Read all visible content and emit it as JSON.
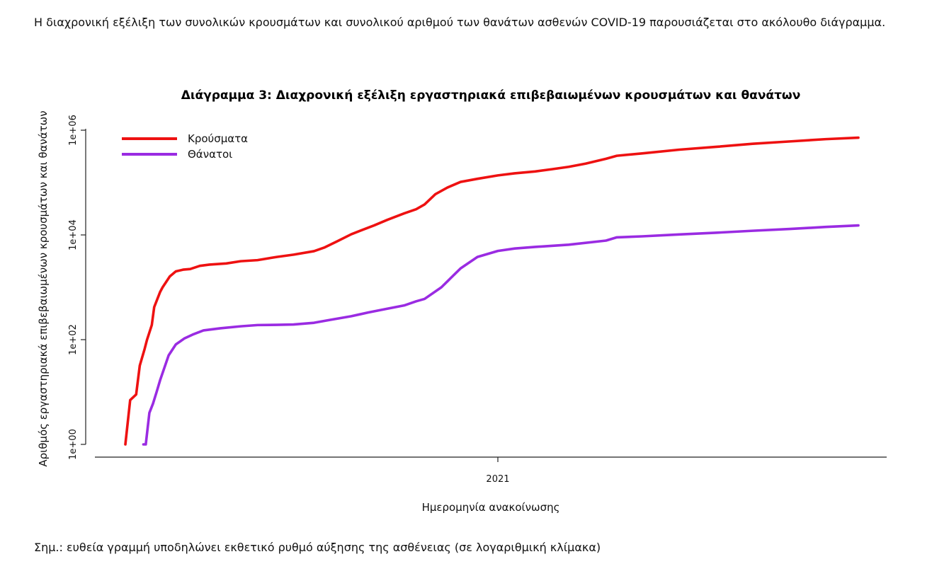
{
  "intro_text": "Η διαχρονική εξέλιξη των συνολικών κρουσμάτων και συνολικού αριθμού των θανάτων ασθενών COVID-19 παρουσιάζεται στο ακόλουθο διάγραμμα.",
  "note_text": "Σημ.: ευθεία γραμμή υποδηλώνει εκθετικό ρυθμό αύξησης της ασθένειας (σε λογαριθμική κλίμακα)",
  "chart_data": {
    "type": "line",
    "title": "Διάγραμμα 3: Διαχρονική εξέλιξη εργαστηριακά επιβεβαιωμένων κρουσμάτων και θανάτων",
    "xlabel": "Ημερομηνία ανακοίνωσης",
    "ylabel": "Αριθμός εργαστηριακά επιβεβαιωμένων κρουσμάτων και θανάτων",
    "y_scale": "log10",
    "ylim": [
      1,
      1000000
    ],
    "y_ticks": [
      "1e+00",
      "1e+02",
      "1e+04",
      "1e+06"
    ],
    "y_tick_values": [
      1,
      100,
      10000,
      1000000
    ],
    "xlim": [
      "2020-02-26",
      "2021-10-28"
    ],
    "x_ticks": [
      "2021"
    ],
    "x_tick_values": [
      "2021-01-01"
    ],
    "grid": false,
    "legend_position": "top-left",
    "colors": {
      "cases": "#ee1111",
      "deaths": "#9a2be2"
    },
    "series": [
      {
        "name": "Κρούσματα",
        "x": [
          "2020-02-26",
          "2020-03-01",
          "2020-03-06",
          "2020-03-09",
          "2020-03-13",
          "2020-03-15",
          "2020-03-19",
          "2020-03-21",
          "2020-03-26",
          "2020-03-28",
          "2020-04-03",
          "2020-04-08",
          "2020-04-14",
          "2020-04-20",
          "2020-04-28",
          "2020-05-06",
          "2020-05-20",
          "2020-06-01",
          "2020-06-15",
          "2020-07-01",
          "2020-07-15",
          "2020-08-01",
          "2020-08-10",
          "2020-08-20",
          "2020-09-01",
          "2020-09-10",
          "2020-09-20",
          "2020-10-01",
          "2020-10-15",
          "2020-10-25",
          "2020-11-01",
          "2020-11-10",
          "2020-11-20",
          "2020-12-01",
          "2020-12-15",
          "2021-01-01",
          "2021-01-15",
          "2021-02-01",
          "2021-02-15",
          "2021-03-01",
          "2021-03-15",
          "2021-04-01",
          "2021-04-10",
          "2021-05-01",
          "2021-06-01",
          "2021-07-01",
          "2021-08-01",
          "2021-09-01",
          "2021-10-01",
          "2021-10-28"
        ],
        "values": [
          1,
          7,
          9,
          32,
          66,
          99,
          190,
          418,
          821,
          1000,
          1613,
          2011,
          2170,
          2235,
          2566,
          2710,
          2850,
          3150,
          3300,
          3800,
          4200,
          4900,
          5800,
          7500,
          10300,
          12400,
          15200,
          19400,
          25800,
          31000,
          38200,
          60000,
          80300,
          103000,
          118000,
          137000,
          150000,
          163000,
          180000,
          200000,
          230000,
          285000,
          325000,
          360000,
          425000,
          480000,
          550000,
          610000,
          675000,
          720000
        ]
      },
      {
        "name": "Θάνατοι",
        "x": [
          "2020-03-12",
          "2020-03-14",
          "2020-03-17",
          "2020-03-20",
          "2020-03-23",
          "2020-03-26",
          "2020-04-02",
          "2020-04-08",
          "2020-04-15",
          "2020-04-22",
          "2020-05-01",
          "2020-05-15",
          "2020-06-01",
          "2020-06-15",
          "2020-07-01",
          "2020-07-15",
          "2020-08-01",
          "2020-08-15",
          "2020-09-01",
          "2020-09-15",
          "2020-10-01",
          "2020-10-15",
          "2020-10-25",
          "2020-11-01",
          "2020-11-15",
          "2020-12-01",
          "2020-12-15",
          "2021-01-01",
          "2021-01-15",
          "2021-02-01",
          "2021-03-01",
          "2021-04-01",
          "2021-04-10",
          "2021-05-01",
          "2021-06-01",
          "2021-07-01",
          "2021-08-01",
          "2021-09-01",
          "2021-10-01",
          "2021-10-28"
        ],
        "values": [
          1,
          1,
          4,
          6,
          10,
          17,
          50,
          81,
          105,
          125,
          150,
          165,
          180,
          190,
          192,
          195,
          210,
          240,
          280,
          330,
          390,
          450,
          540,
          600,
          1000,
          2300,
          3800,
          4950,
          5500,
          5900,
          6500,
          7800,
          9000,
          9400,
          10200,
          11000,
          12000,
          13000,
          14200,
          15200
        ]
      }
    ]
  }
}
